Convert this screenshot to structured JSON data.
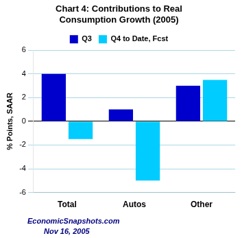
{
  "chart_data": {
    "type": "bar",
    "title": "Chart 4: Contributions to Real\nConsumption Growth (2005)",
    "categories": [
      "Total",
      "Autos",
      "Other"
    ],
    "series": [
      {
        "name": "Q3",
        "color": "#0000CC",
        "values": [
          4.0,
          1.0,
          3.0
        ]
      },
      {
        "name": "Q4 to Date, Fcst",
        "color": "#00CCFF",
        "values": [
          -1.5,
          -5.0,
          3.5
        ]
      }
    ],
    "ylabel": "% Points, SAAR",
    "ylim": [
      -6,
      6
    ],
    "yticks": [
      -6,
      -4,
      -2,
      0,
      2,
      4,
      6
    ],
    "grid": true,
    "legend": "top",
    "annotations": [
      {
        "text": "EconomicSnapshots.com",
        "color": "#000080"
      },
      {
        "text": "Nov 16, 2005",
        "color": "#000080"
      }
    ]
  }
}
